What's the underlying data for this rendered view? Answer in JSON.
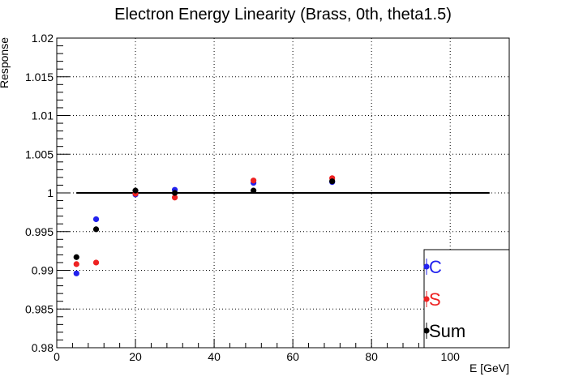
{
  "chart_data": {
    "type": "scatter",
    "title": "Electron Energy Linearity (Brass, 0th, theta1.5)",
    "xlabel": "E [GeV]",
    "ylabel": "Response",
    "xlim": [
      0,
      115
    ],
    "ylim": [
      0.98,
      1.02
    ],
    "grid": true,
    "legend_position": "bottom-right",
    "x_ticks": [
      0,
      20,
      40,
      60,
      80,
      100
    ],
    "x_tick_labels": [
      "0",
      "20",
      "40",
      "60",
      "80",
      "100"
    ],
    "y_ticks": [
      0.98,
      0.985,
      0.99,
      0.995,
      1.0,
      1.005,
      1.01,
      1.015,
      1.02
    ],
    "y_tick_labels": [
      "0.98",
      "0.985",
      "0.99",
      "0.995",
      "1",
      "1.005",
      "1.01",
      "1.015",
      "1.02"
    ],
    "reference_line": {
      "x": [
        5,
        110
      ],
      "y": 1.0
    },
    "series": [
      {
        "name": "C",
        "color": "#2222ee",
        "x": [
          5,
          10,
          20,
          30,
          50,
          70
        ],
        "y": [
          0.9896,
          0.9966,
          0.9998,
          1.0004,
          1.0013,
          1.0014
        ]
      },
      {
        "name": "S",
        "color": "#ee2222",
        "x": [
          5,
          10,
          20,
          30,
          50,
          70
        ],
        "y": [
          0.9908,
          0.991,
          0.9999,
          0.9994,
          1.0016,
          1.0019
        ]
      },
      {
        "name": "Sum",
        "color": "#000000",
        "x": [
          5,
          10,
          20,
          30,
          50,
          70
        ],
        "y": [
          0.9917,
          0.9953,
          1.0003,
          1.0,
          1.0003,
          1.0015
        ]
      }
    ]
  }
}
